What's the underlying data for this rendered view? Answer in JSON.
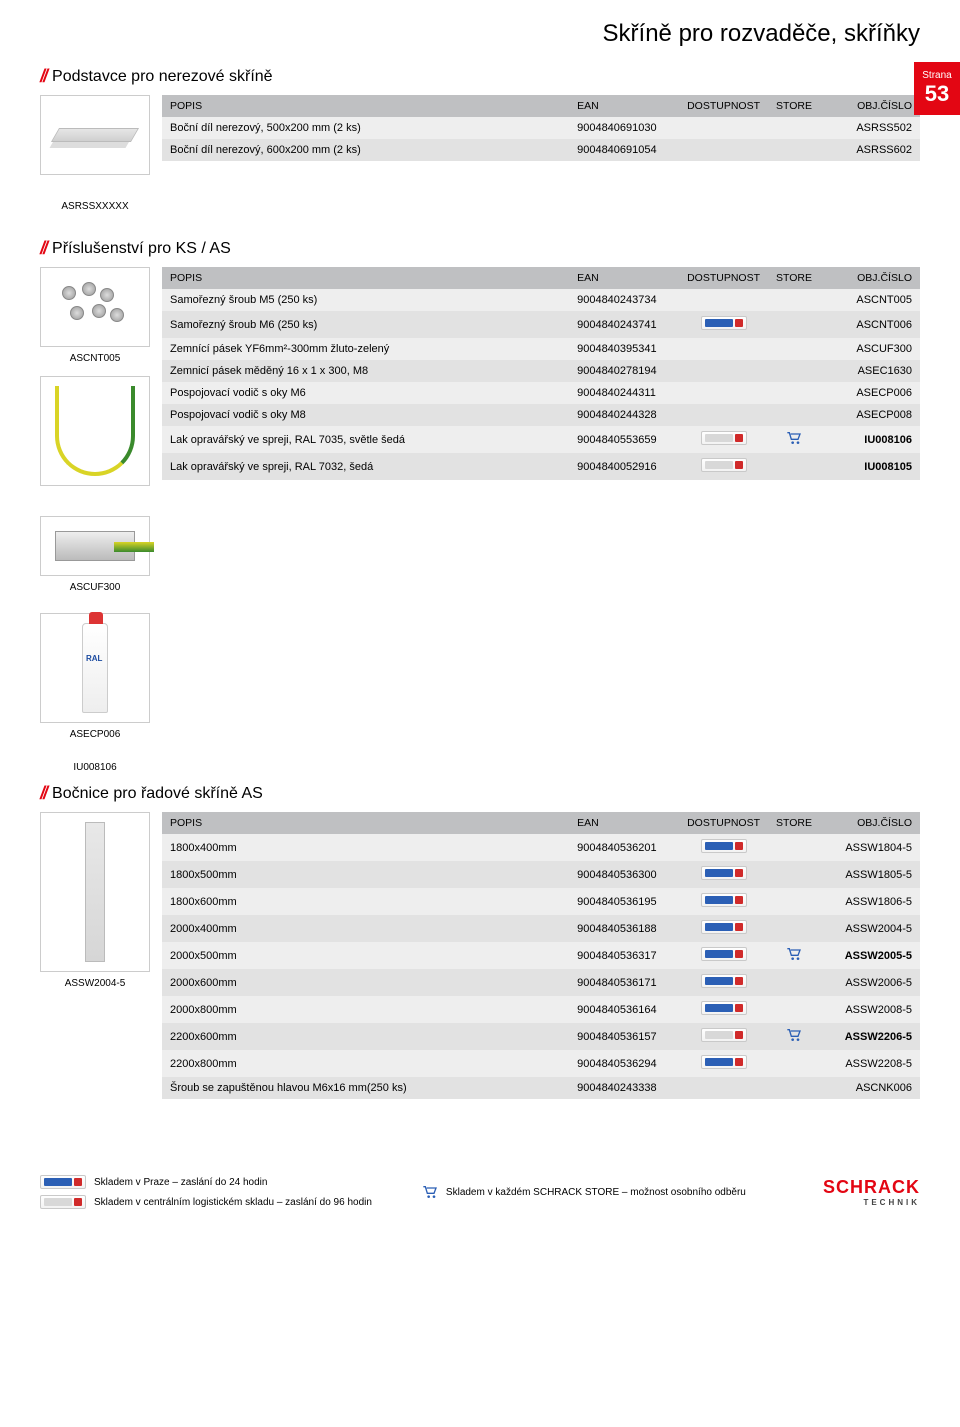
{
  "pageTitle": "Skříně pro rozvaděče, skříňky",
  "pageBadge": {
    "label": "Strana",
    "num": "53"
  },
  "columns": {
    "popis": "POPIS",
    "ean": "EAN",
    "dostupnost": "DOSTUPNOST",
    "store": "STORE",
    "obj": "OBJ.ČÍSLO"
  },
  "sections": {
    "podstavce": {
      "title": "Podstavce pro nerezové skříně",
      "thumbLabel": "ASRSSXXXXX",
      "rows": [
        {
          "popis": "Boční díl nerezový, 500x200 mm (2 ks)",
          "ean": "9004840691030",
          "dost": "",
          "store": "",
          "obj": "ASRSS502"
        },
        {
          "popis": "Boční díl nerezový, 600x200 mm (2 ks)",
          "ean": "9004840691054",
          "dost": "",
          "store": "",
          "obj": "ASRSS602"
        }
      ]
    },
    "prislusenstvi": {
      "title": "Příslušenství pro KS / AS",
      "thumbLabels": [
        "ASCNT005",
        "ASCUF300",
        "ASECP006",
        "IU008106"
      ],
      "rows": [
        {
          "popis": "Samořezný šroub M5 (250 ks)",
          "ean": "9004840243734",
          "dost": "",
          "store": "",
          "obj": "ASCNT005"
        },
        {
          "popis": "Samořezný šroub M6 (250 ks)",
          "ean": "9004840243741",
          "dost": "blue",
          "store": "",
          "obj": "ASCNT006"
        },
        {
          "popis": "Zemnící pásek YF6mm²-300mm žluto-zelený",
          "ean": "9004840395341",
          "dost": "",
          "store": "",
          "obj": "ASCUF300"
        },
        {
          "popis": "Zemnicí pásek měděný 16 x 1 x 300, M8",
          "ean": "9004840278194",
          "dost": "",
          "store": "",
          "obj": "ASEC1630"
        },
        {
          "popis": "Pospojovací vodič s oky M6",
          "ean": "9004840244311",
          "dost": "",
          "store": "",
          "obj": "ASECP006"
        },
        {
          "popis": "Pospojovací vodič s oky M8",
          "ean": "9004840244328",
          "dost": "",
          "store": "",
          "obj": "ASECP008"
        },
        {
          "popis": "Lak opravářský ve spreji, RAL 7035, světle šedá",
          "ean": "9004840553659",
          "dost": "white",
          "store": "cart",
          "obj": "IU008106",
          "bold": true
        },
        {
          "popis": "Lak opravářský ve spreji, RAL 7032, šedá",
          "ean": "9004840052916",
          "dost": "white",
          "store": "",
          "obj": "IU008105",
          "bold": true
        }
      ]
    },
    "bocnice": {
      "title": "Bočnice pro řadové skříně AS",
      "thumbLabel": "ASSW2004-5",
      "rows": [
        {
          "popis": "1800x400mm",
          "ean": "9004840536201",
          "dost": "blue",
          "store": "",
          "obj": "ASSW1804-5"
        },
        {
          "popis": "1800x500mm",
          "ean": "9004840536300",
          "dost": "blue",
          "store": "",
          "obj": "ASSW1805-5"
        },
        {
          "popis": "1800x600mm",
          "ean": "9004840536195",
          "dost": "blue",
          "store": "",
          "obj": "ASSW1806-5"
        },
        {
          "popis": "2000x400mm",
          "ean": "9004840536188",
          "dost": "blue",
          "store": "",
          "obj": "ASSW2004-5"
        },
        {
          "popis": "2000x500mm",
          "ean": "9004840536317",
          "dost": "blue",
          "store": "cart",
          "obj": "ASSW2005-5",
          "bold": true
        },
        {
          "popis": "2000x600mm",
          "ean": "9004840536171",
          "dost": "blue",
          "store": "",
          "obj": "ASSW2006-5"
        },
        {
          "popis": "2000x800mm",
          "ean": "9004840536164",
          "dost": "blue",
          "store": "",
          "obj": "ASSW2008-5"
        },
        {
          "popis": "2200x600mm",
          "ean": "9004840536157",
          "dost": "white",
          "store": "cart",
          "obj": "ASSW2206-5",
          "bold": true
        },
        {
          "popis": "2200x800mm",
          "ean": "9004840536294",
          "dost": "blue",
          "store": "",
          "obj": "ASSW2208-5"
        },
        {
          "popis": "Šroub se zapuštěnou hlavou M6x16 mm(250 ks)",
          "ean": "9004840243338",
          "dost": "",
          "store": "",
          "obj": "ASCNK006"
        }
      ]
    }
  },
  "footer": {
    "legend1": "Skladem v Praze – zaslání do 24 hodin",
    "legend2": "Skladem v centrálním logistickém skladu – zaslání do 96 hodin",
    "legend3": "Skladem v každém SCHRACK STORE – možnost osobního odběru",
    "logo": "SCHRACK",
    "logo_sub": "TECHNIK"
  },
  "colors": {
    "accent": "#e30613",
    "header_bg": "#bfc0c2",
    "row_odd": "#eeeeee",
    "row_even": "#e2e2e2"
  }
}
